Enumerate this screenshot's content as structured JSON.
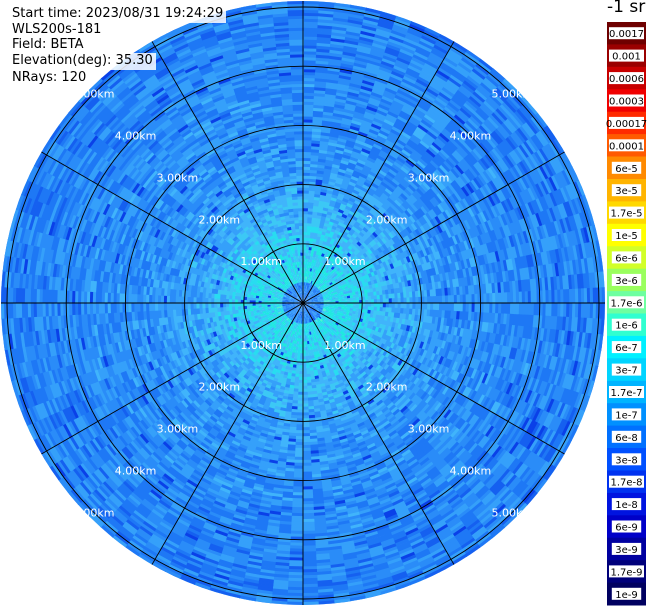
{
  "info": {
    "start_time": "Start time: 2023/08/31 19:24:29",
    "instrument": "WLS200s-181",
    "field": "Field: BETA",
    "elevation": "Elevation(deg): 35.30",
    "nrays": "NRays: 120"
  },
  "colorbar": {
    "unit": "-1 sr",
    "labels": [
      "0.0017",
      "0.001",
      "0.0006",
      "0.0003",
      "0.00017",
      "0.0001",
      "6e-5",
      "3e-5",
      "1.7e-5",
      "1e-5",
      "6e-6",
      "3e-6",
      "1.7e-6",
      "1e-6",
      "6e-7",
      "3e-7",
      "1.7e-7",
      "1e-7",
      "6e-8",
      "3e-8",
      "1.7e-8",
      "1e-8",
      "6e-9",
      "3e-9",
      "1.7e-9",
      "1e-9"
    ],
    "colors": [
      "#6e0000",
      "#9a0000",
      "#c80000",
      "#f00000",
      "#ff2a00",
      "#ff5a00",
      "#ff8a00",
      "#ffb400",
      "#ffd800",
      "#ffff00",
      "#d2ff28",
      "#9aff5e",
      "#6effa0",
      "#30ffd0",
      "#00f0ff",
      "#00d4ff",
      "#00b4ff",
      "#0090ff",
      "#0070ff",
      "#0050ff",
      "#0032f0",
      "#0014e0",
      "#0000c8",
      "#0000a0",
      "#00007a",
      "#000060"
    ]
  },
  "chart_data": {
    "type": "heatmap",
    "projection": "polar PPI",
    "field": "BETA",
    "unit": "-1 sr",
    "elevation_deg": 35.3,
    "n_rays": 120,
    "range_rings_km": [
      1.0,
      2.0,
      3.0,
      4.0,
      5.0
    ],
    "ring_labels": [
      "1.00km",
      "2.00km",
      "3.00km",
      "4.00km",
      "5.00km"
    ],
    "max_range_km": 5.7,
    "radial_lines_deg": [
      0,
      30,
      60,
      90,
      120,
      150,
      180,
      210,
      240,
      270,
      300,
      330
    ],
    "typical_values": {
      "near_range": "3e-7",
      "mid_range": "1e-7",
      "far_range": "6e-8"
    }
  }
}
